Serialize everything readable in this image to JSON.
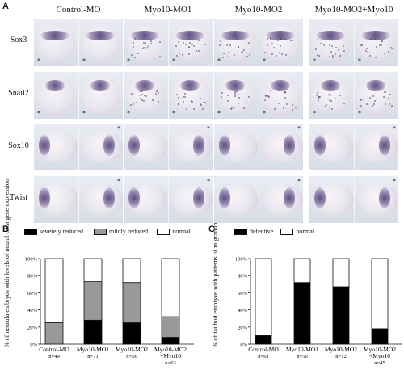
{
  "panel_a": {
    "letter": "A",
    "columns": [
      "Control-MO",
      "Myo10-MO1",
      "Myo10-MO2",
      "Myo10-MO2+Myo10"
    ],
    "rows": [
      "Sox3",
      "Snail2",
      "Sox10",
      "Twist"
    ],
    "marker": "*"
  },
  "panel_b": {
    "letter": "B",
    "legend": [
      "severely reduced",
      "mildly reduced",
      "normal"
    ],
    "colors": {
      "severe": "#000000",
      "mild": "#999999",
      "normal": "#ffffff"
    }
  },
  "panel_c": {
    "letter": "C",
    "legend": [
      "defective",
      "normal"
    ],
    "colors": {
      "defective": "#000000",
      "normal": "#ffffff"
    }
  },
  "chart_data": [
    {
      "type": "bar",
      "stacked": true,
      "ylabel": "% of neurula embryos with levels of neural crest gene expression",
      "yticks": [
        "0%",
        "20%",
        "40%",
        "60%",
        "80%",
        "100%"
      ],
      "ylim": [
        0,
        100
      ],
      "categories": [
        "Control-MO",
        "Myo10-MO1",
        "Myo10-MO2",
        "Myo10-MO2 +Myo10"
      ],
      "category_counts": [
        "n=49",
        "n=71",
        "n=56",
        "n=63"
      ],
      "series": [
        {
          "name": "severely reduced",
          "values": [
            0,
            28,
            25,
            8
          ]
        },
        {
          "name": "mildly reduced",
          "values": [
            25,
            45,
            47,
            24
          ]
        },
        {
          "name": "normal",
          "values": [
            75,
            27,
            28,
            68
          ]
        }
      ]
    },
    {
      "type": "bar",
      "stacked": true,
      "ylabel": "% of tailbud embryos with patterns of migration",
      "yticks": [
        "0%",
        "20%",
        "40%",
        "60%",
        "80%",
        "100%"
      ],
      "ylim": [
        0,
        100
      ],
      "categories": [
        "Control-MO",
        "Myo10-MO1",
        "Myo10-MO2",
        "Myo10-MO2 +Myo10"
      ],
      "category_counts": [
        "n=61",
        "n=50",
        "n=12",
        "n=45"
      ],
      "series": [
        {
          "name": "defective",
          "values": [
            10,
            72,
            67,
            18
          ]
        },
        {
          "name": "normal",
          "values": [
            90,
            28,
            33,
            82
          ]
        }
      ]
    }
  ]
}
